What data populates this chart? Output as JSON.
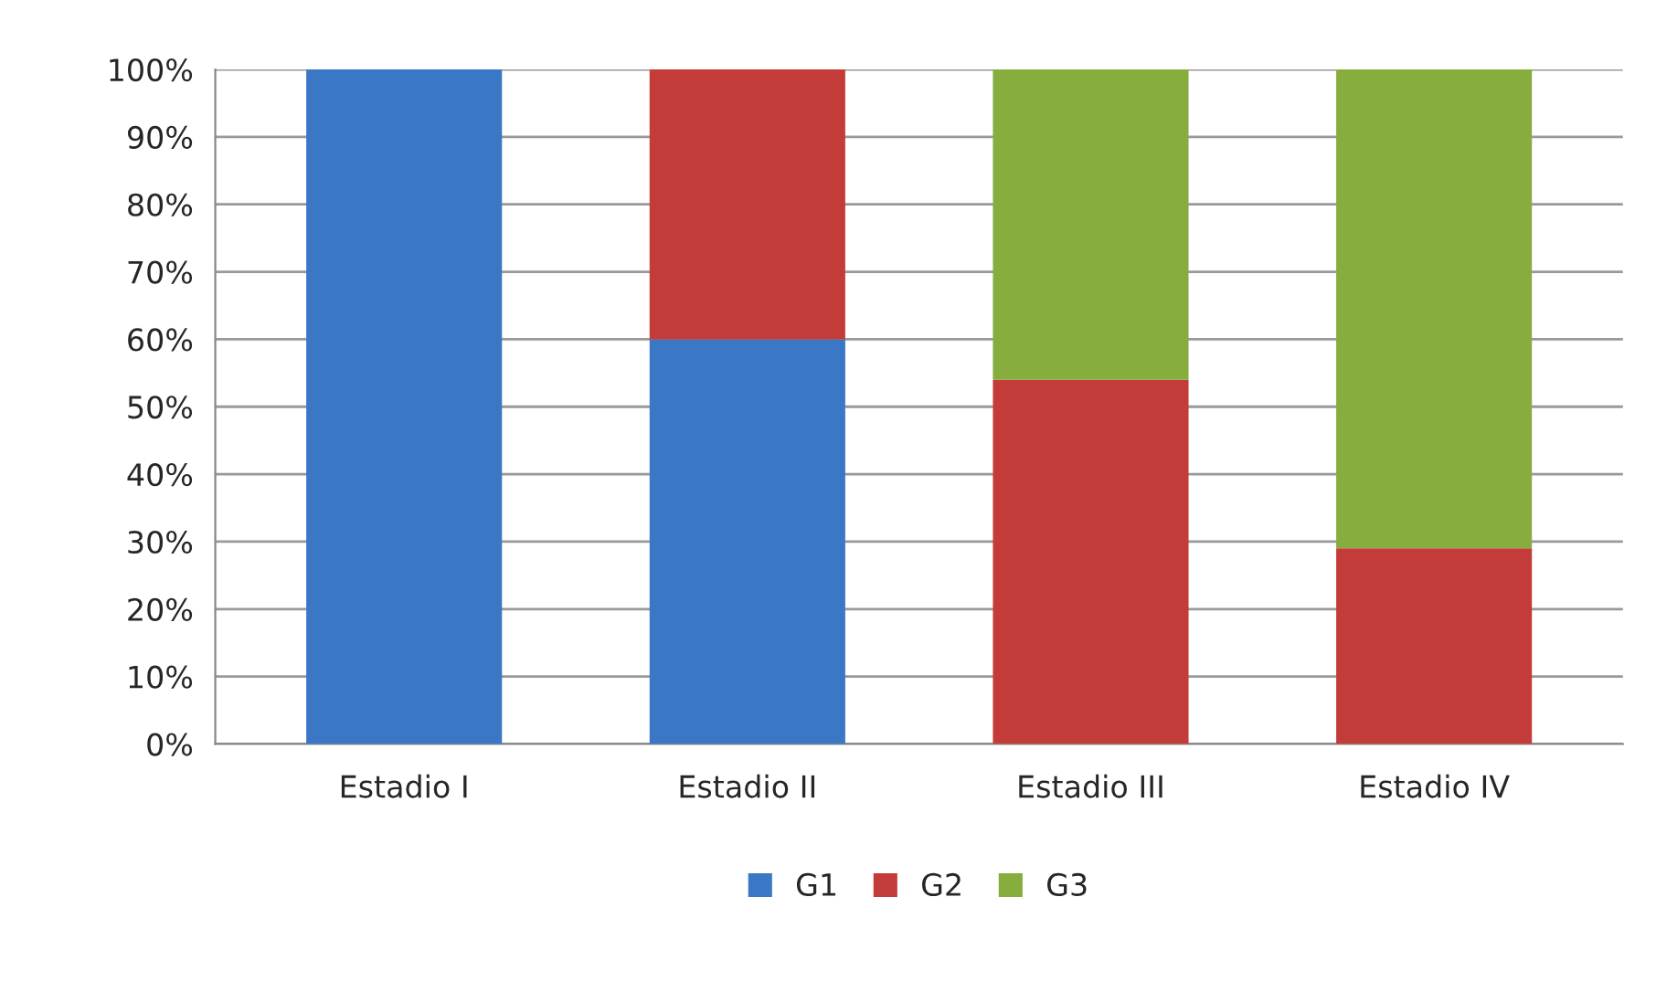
{
  "chart_data": {
    "type": "bar",
    "stacked": true,
    "categories": [
      "Estadio I",
      "Estadio II",
      "Estadio III",
      "Estadio IV"
    ],
    "series": [
      {
        "name": "G1",
        "color": "#3a78c6",
        "values": [
          100,
          60,
          0,
          0
        ]
      },
      {
        "name": "G2",
        "color": "#c43c39",
        "values": [
          0,
          40,
          54,
          29
        ]
      },
      {
        "name": "G3",
        "color": "#86ad3e",
        "values": [
          0,
          0,
          46,
          71
        ]
      }
    ],
    "ylim": [
      0,
      100
    ],
    "yticks": [
      {
        "value": 0,
        "label": "0%"
      },
      {
        "value": 10,
        "label": "10%"
      },
      {
        "value": 20,
        "label": "20%"
      },
      {
        "value": 30,
        "label": "30%"
      },
      {
        "value": 40,
        "label": "40%"
      },
      {
        "value": 50,
        "label": "50%"
      },
      {
        "value": 60,
        "label": "60%"
      },
      {
        "value": 70,
        "label": "70%"
      },
      {
        "value": 80,
        "label": "80%"
      },
      {
        "value": 90,
        "label": "90%"
      },
      {
        "value": 100,
        "label": "100%"
      }
    ],
    "grid": "y",
    "legend": "bottom"
  }
}
